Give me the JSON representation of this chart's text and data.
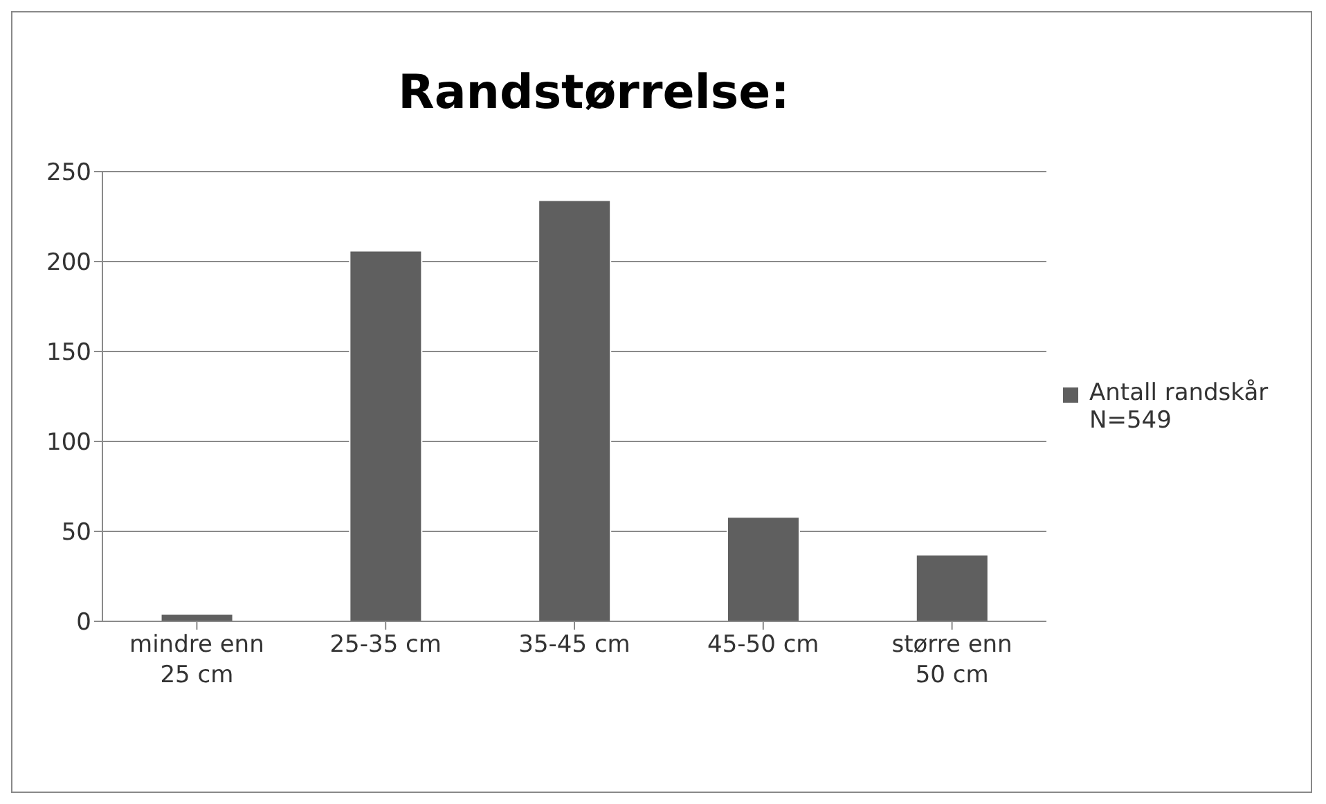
{
  "chart_data": {
    "type": "bar",
    "title": "Randstørrelse:",
    "categories": [
      "mindre enn 25 cm",
      "25-35 cm",
      "35-45 cm",
      "45-50 cm",
      "større enn 50 cm"
    ],
    "series": [
      {
        "name": "Antall randskår N=549",
        "color": "#5f5f5f",
        "values": [
          4,
          206,
          234,
          58,
          37
        ]
      }
    ],
    "ylim": [
      0,
      250
    ],
    "yticks": [
      0,
      50,
      100,
      150,
      200,
      250
    ],
    "grid": "y",
    "legend": "right"
  }
}
